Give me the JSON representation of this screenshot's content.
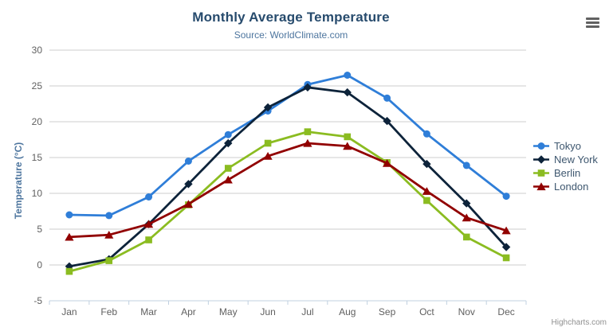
{
  "header": {
    "title": "Monthly Average Temperature",
    "subtitle": "Source: WorldClimate.com"
  },
  "menu": {
    "icon": "hamburger-menu-icon"
  },
  "credits": {
    "label": "Highcharts.com"
  },
  "chart_data": {
    "type": "line",
    "title": "Monthly Average Temperature",
    "subtitle": "Source: WorldClimate.com",
    "categories": [
      "Jan",
      "Feb",
      "Mar",
      "Apr",
      "May",
      "Jun",
      "Jul",
      "Aug",
      "Sep",
      "Oct",
      "Nov",
      "Dec"
    ],
    "xlabel": "",
    "ylabel": "Temperature (°C)",
    "ylim": [
      -5,
      30
    ],
    "yticks": [
      -5,
      0,
      5,
      10,
      15,
      20,
      25,
      30
    ],
    "grid": true,
    "legend_position": "right",
    "colors": {
      "grid_line": "#cccccc",
      "axis_line": "#c0d0e0",
      "tick_label": "#606060",
      "legend_text": "#3e576f"
    },
    "series": [
      {
        "name": "Tokyo",
        "color": "#2f7ed8",
        "marker": "circle",
        "values": [
          7.0,
          6.9,
          9.5,
          14.5,
          18.2,
          21.5,
          25.2,
          26.5,
          23.3,
          18.3,
          13.9,
          9.6
        ]
      },
      {
        "name": "New York",
        "color": "#0d233a",
        "marker": "diamond",
        "values": [
          -0.2,
          0.8,
          5.7,
          11.3,
          17.0,
          22.0,
          24.8,
          24.1,
          20.1,
          14.1,
          8.6,
          2.5
        ]
      },
      {
        "name": "Berlin",
        "color": "#8bbc21",
        "marker": "square",
        "values": [
          -0.9,
          0.6,
          3.5,
          8.4,
          13.5,
          17.0,
          18.6,
          17.9,
          14.3,
          9.0,
          3.9,
          1.0
        ]
      },
      {
        "name": "London",
        "color": "#910000",
        "marker": "triangle",
        "values": [
          3.9,
          4.2,
          5.7,
          8.5,
          11.9,
          15.2,
          17.0,
          16.6,
          14.2,
          10.3,
          6.6,
          4.8
        ]
      }
    ]
  }
}
